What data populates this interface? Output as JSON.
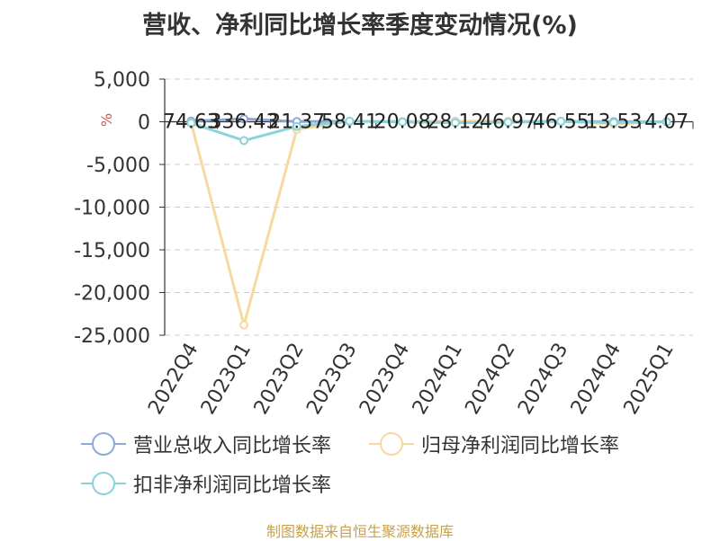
{
  "title": "营收、净利同比增长率季度变动情况(%)",
  "source": "制图数据来自恒生聚源数据库",
  "chart_data": {
    "type": "line",
    "categories": [
      "2022Q4",
      "2023Q1",
      "2023Q2",
      "2023Q3",
      "2023Q4",
      "2024Q1",
      "2024Q2",
      "2024Q3",
      "2024Q4",
      "2025Q1"
    ],
    "ylabel": "%",
    "ylim": [
      -25000,
      5000
    ],
    "yticks": [
      5000,
      0,
      -5000,
      -10000,
      -15000,
      -20000,
      -25000
    ],
    "ytick_labels": [
      "5,000",
      "0",
      "-5,000",
      "-10,000",
      "-15,000",
      "-20,000",
      "-25,000"
    ],
    "grid": true,
    "legend_position": "bottom",
    "data_labels": [
      "74.63",
      "336.43",
      "21.37",
      "58.41",
      "20.08",
      "28.12",
      "46.97",
      "46.55",
      "13.53",
      "4.07"
    ],
    "series": [
      {
        "name": "营业总收入同比增长率",
        "color": "#8fa9d4",
        "values": [
          74.63,
          336.43,
          21.37,
          58.41,
          20.08,
          28.12,
          46.97,
          46.55,
          13.53,
          4.07
        ]
      },
      {
        "name": "归母净利润同比增长率",
        "color": "#f7d9a0",
        "values": [
          -120,
          -23800,
          -900,
          60,
          15,
          -20,
          40,
          30,
          -250,
          10
        ]
      },
      {
        "name": "扣非净利润同比增长率",
        "color": "#8ad3d8",
        "values": [
          -150,
          -2200,
          -550,
          80,
          -20,
          -120,
          -60,
          50,
          -100,
          -15
        ]
      }
    ]
  }
}
